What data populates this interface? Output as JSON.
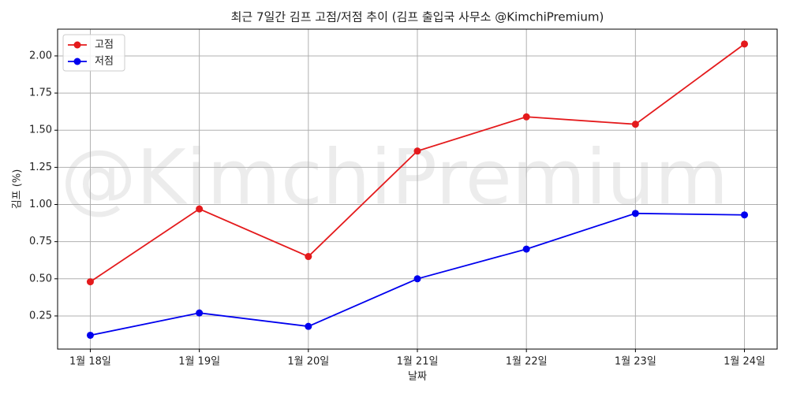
{
  "chart_data": {
    "type": "line",
    "title": "최근 7일간 김프 고점/저점 추이 (김프 출입국 사무소 @KimchiPremium)",
    "watermark": "@KimchiPremium",
    "x_label": "날짜",
    "y_label": "김프 (%)",
    "categories": [
      "1월 18일",
      "1월 19일",
      "1월 20일",
      "1월 21일",
      "1월 22일",
      "1월 23일",
      "1월 24일"
    ],
    "series": [
      {
        "name": "고점",
        "color": "#e41a1c",
        "values": [
          0.48,
          0.97,
          0.65,
          1.36,
          1.59,
          1.54,
          2.08
        ]
      },
      {
        "name": "저점",
        "color": "#0000ee",
        "values": [
          0.12,
          0.27,
          0.18,
          0.5,
          0.7,
          0.94,
          0.93
        ]
      }
    ],
    "ylim": [
      0.027,
      2.18
    ],
    "yticks": [
      0.25,
      {
        "value": 0.5,
        "label": "0.50"
      },
      0.75,
      {
        "value": 1,
        "label": "1.00"
      },
      1.25,
      {
        "value": 1.5,
        "label": "1.50"
      },
      1.75,
      {
        "value": 2,
        "label": "2.00"
      }
    ],
    "grid": true,
    "legend": "upper left"
  }
}
